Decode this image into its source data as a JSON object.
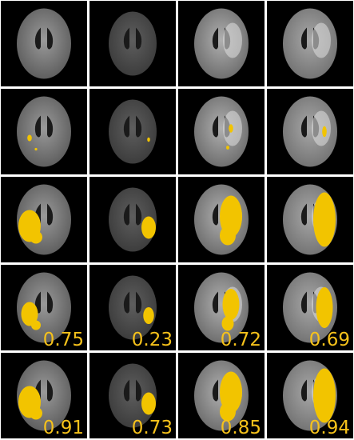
{
  "scores": [
    [
      0.75,
      0.23,
      0.72,
      0.69
    ],
    [
      0.91,
      0.73,
      0.85,
      0.94
    ]
  ]
}
